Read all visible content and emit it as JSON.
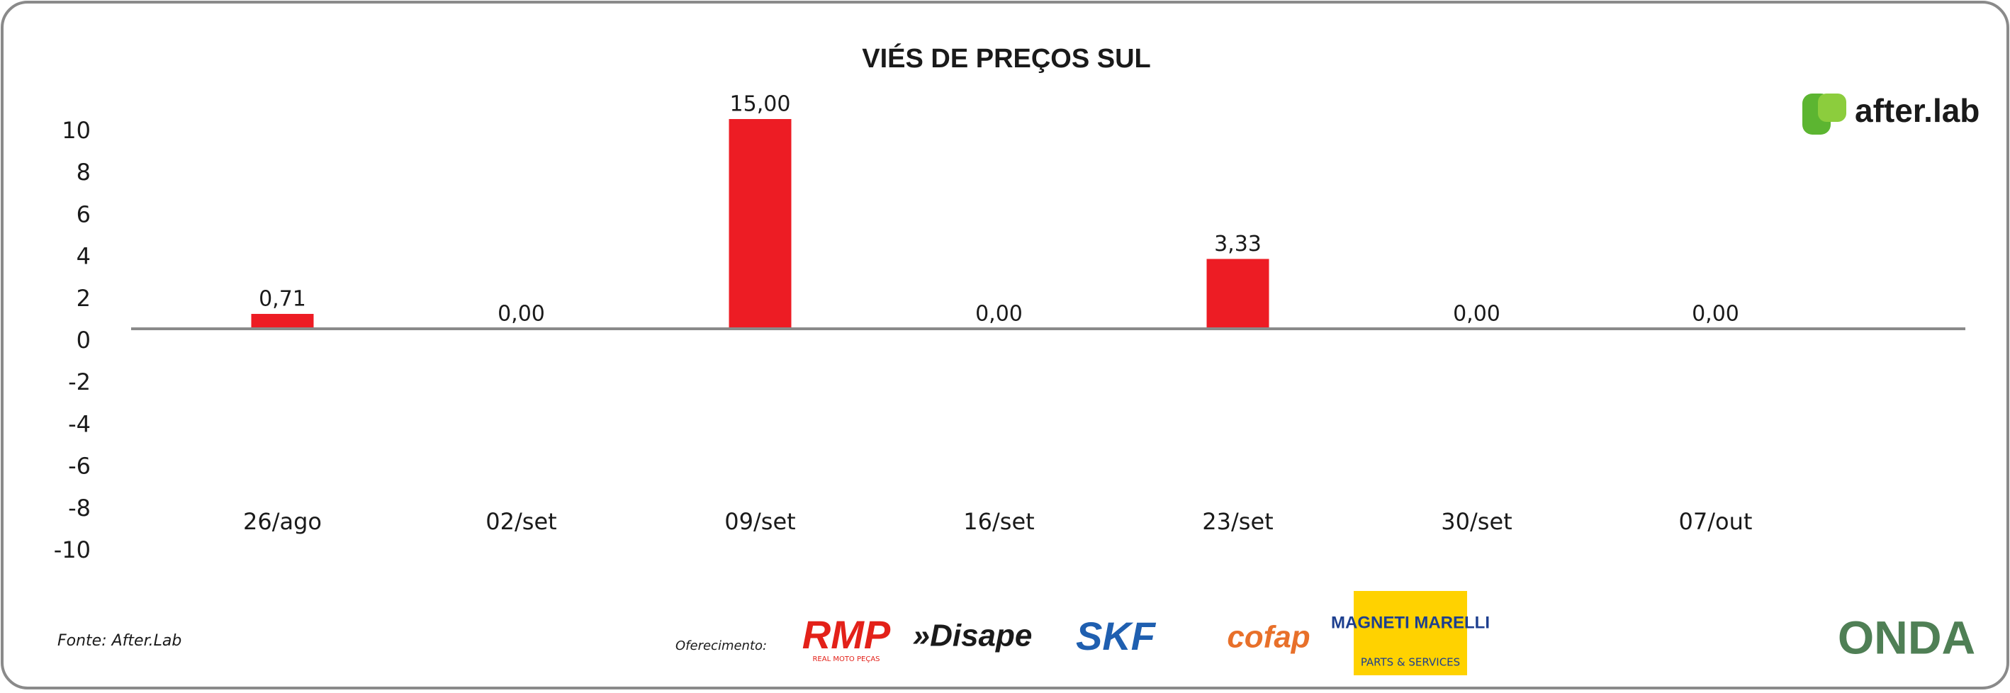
{
  "chart_data": {
    "type": "bar",
    "title": "VIÉS DE PREÇOS SUL",
    "categories": [
      "26/ago",
      "02/set",
      "09/set",
      "16/set",
      "23/set",
      "30/set",
      "07/out"
    ],
    "values": [
      0.71,
      0,
      15,
      0,
      3.33,
      0,
      0
    ],
    "value_labels": [
      "0,71",
      "0,00",
      "15,00",
      "0,00",
      "3,33",
      "0,00",
      "0,00"
    ],
    "color": "#ed1c24",
    "ylim": [
      -10,
      10
    ],
    "yticks": [
      -10,
      -8,
      -6,
      -4,
      -2,
      0,
      2,
      4,
      6,
      8,
      10
    ],
    "grid": false
  },
  "brand": "after.lab",
  "footer": {
    "source": "Fonte: After.Lab",
    "sponsor_label": "Oferecimento:",
    "sponsors": [
      "RMP",
      "REAL MOTO PEÇAS",
      "»Disape",
      "SKF",
      "cofap",
      "MAGNETI MARELLI",
      "PARTS & SERVICES"
    ],
    "partner": "ONDA"
  }
}
